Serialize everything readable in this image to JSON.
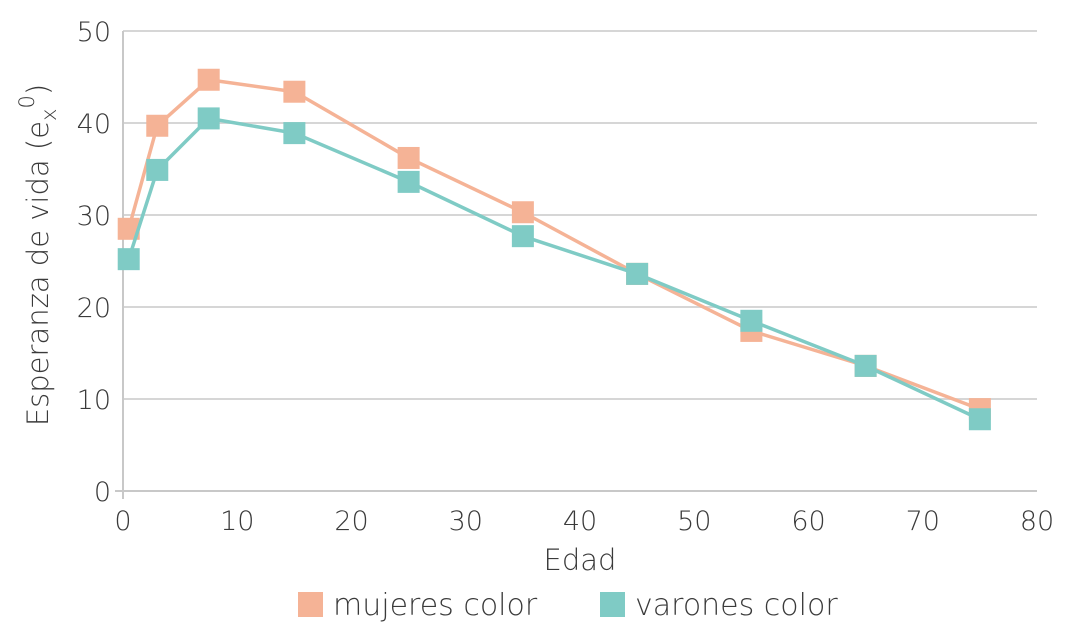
{
  "chart_data": {
    "type": "line",
    "xlabel": "Edad",
    "ylabel_main": "Esperanza de vida (e",
    "ylabel_sub": "x",
    "ylabel_sup": "0",
    "ylabel_close": ")",
    "xlim": [
      0,
      80
    ],
    "ylim": [
      0,
      50
    ],
    "x_ticks": [
      0,
      10,
      20,
      30,
      40,
      50,
      60,
      70,
      80
    ],
    "y_ticks": [
      0,
      10,
      20,
      30,
      40,
      50
    ],
    "grid": "horizontal",
    "legend_position": "bottom",
    "series": [
      {
        "name": "mujeres color",
        "color": "#f5b396",
        "points": [
          [
            0.5,
            28.5
          ],
          [
            3,
            39.7
          ],
          [
            7.5,
            44.7
          ],
          [
            15,
            43.4
          ],
          [
            25,
            36.2
          ],
          [
            35,
            30.3
          ],
          [
            45,
            23.6
          ],
          [
            55,
            17.4
          ],
          [
            65,
            13.6
          ],
          [
            75,
            8.9
          ]
        ]
      },
      {
        "name": "varones color",
        "color": "#7fcbc5",
        "points": [
          [
            0.5,
            25.2
          ],
          [
            3,
            34.9
          ],
          [
            7.5,
            40.5
          ],
          [
            15,
            38.9
          ],
          [
            25,
            33.6
          ],
          [
            35,
            27.7
          ],
          [
            45,
            23.6
          ],
          [
            55,
            18.5
          ],
          [
            65,
            13.6
          ],
          [
            75,
            7.8
          ]
        ]
      }
    ]
  }
}
